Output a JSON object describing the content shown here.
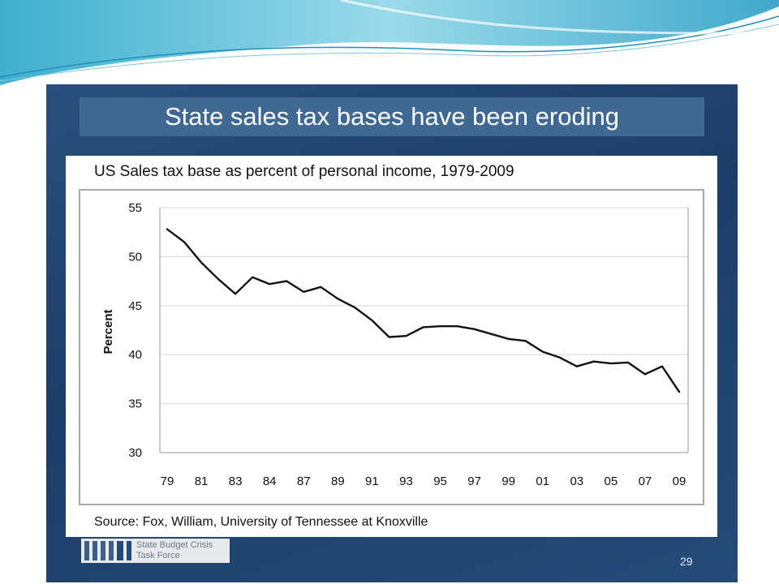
{
  "slide": {
    "title": "State sales tax bases have been eroding",
    "number": "29"
  },
  "footer": {
    "logo_line1": "State Budget Crisis",
    "logo_line2": "Task Force"
  },
  "chart_data": {
    "type": "line",
    "title": "US Sales tax base as percent of personal income, 1979-2009",
    "source": "Source: Fox, William, University of Tennessee at Knoxville",
    "ylabel": "Percent",
    "xlabel": "",
    "ylim": [
      30,
      55
    ],
    "yticks": [
      "30",
      "35",
      "40",
      "45",
      "50",
      "55"
    ],
    "x_tick_labels": [
      "79",
      "81",
      "83",
      "84",
      "87",
      "89",
      "91",
      "93",
      "95",
      "97",
      "99",
      "01",
      "03",
      "05",
      "07",
      "09"
    ],
    "grid": "horizontal",
    "series": [
      {
        "color": "#111111",
        "x": [
          1979,
          1980,
          1981,
          1982,
          1983,
          1984,
          1985,
          1986,
          1987,
          1988,
          1989,
          1990,
          1991,
          1992,
          1993,
          1994,
          1995,
          1996,
          1997,
          1998,
          1999,
          2000,
          2001,
          2002,
          2003,
          2004,
          2005,
          2006,
          2007,
          2008,
          2009
        ],
        "values": [
          52.8,
          51.5,
          49.4,
          47.7,
          46.2,
          47.9,
          47.2,
          47.5,
          46.4,
          46.9,
          45.7,
          44.8,
          43.5,
          41.8,
          41.9,
          42.8,
          42.9,
          42.9,
          42.6,
          42.1,
          41.6,
          41.4,
          40.3,
          39.7,
          38.8,
          39.3,
          39.1,
          39.2,
          38.0,
          38.8,
          36.2
        ]
      }
    ]
  }
}
